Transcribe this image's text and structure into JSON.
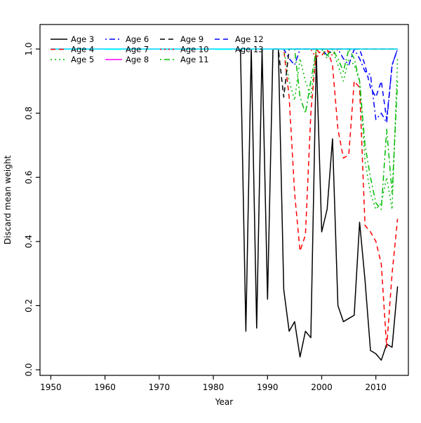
{
  "figure": {
    "background": "#ffffff"
  },
  "chart_data": {
    "type": "line",
    "title": "",
    "xlabel": "Year",
    "ylabel": "Discard mean weight",
    "xlim": [
      1948,
      2016
    ],
    "ylim": [
      0.0,
      1.0
    ],
    "xticks": [
      1950,
      1960,
      1970,
      1980,
      1990,
      2000,
      2010
    ],
    "yticks": [
      0.0,
      0.2,
      0.4,
      0.6,
      0.8,
      1.0
    ],
    "ytick_labels": [
      "0.0",
      "0.2",
      "0.4",
      "0.6",
      "0.8",
      "1.0"
    ],
    "grid": false,
    "legend": {
      "position": "top-left-inside",
      "columns": 4,
      "rows": 3,
      "order": "column-major",
      "labels": [
        "Age 3",
        "Age 4",
        "Age 5",
        "Age 6",
        "Age 7",
        "Age 8",
        "Age 9",
        "Age 10",
        "Age 11",
        "Age 12",
        "Age 13"
      ]
    },
    "series": [
      {
        "name": "Age 3",
        "color": "#000000",
        "dash": "solid",
        "x": [
          1985,
          1986,
          1987,
          1988,
          1989,
          1990,
          1991,
          1992,
          1993,
          1994,
          1995,
          1996,
          1997,
          1998,
          1999,
          2000,
          2001,
          2002,
          2003,
          2004,
          2005,
          2006,
          2007,
          2008,
          2009,
          2010,
          2011,
          2012,
          2013,
          2014
        ],
        "y": [
          1.0,
          0.12,
          1.0,
          0.13,
          1.0,
          0.22,
          1.0,
          1.0,
          0.25,
          0.12,
          0.15,
          0.04,
          0.12,
          0.1,
          0.98,
          0.43,
          0.5,
          0.72,
          0.2,
          0.15,
          0.16,
          0.17,
          0.46,
          0.28,
          0.06,
          0.05,
          0.03,
          0.08,
          0.07,
          0.26
        ]
      },
      {
        "name": "Age 4",
        "color": "#FF0000",
        "dash": "dashed",
        "x": [
          1992,
          1993,
          1994,
          1995,
          1996,
          1997,
          1998,
          1999,
          2000,
          2001,
          2002,
          2003,
          2004,
          2005,
          2006,
          2007,
          2008,
          2009,
          2010,
          2011,
          2012,
          2013,
          2014
        ],
        "y": [
          1.0,
          1.0,
          0.85,
          0.55,
          0.37,
          0.42,
          0.8,
          1.0,
          0.98,
          1.0,
          0.95,
          0.75,
          0.66,
          0.67,
          0.9,
          0.88,
          0.45,
          0.43,
          0.4,
          0.33,
          0.07,
          0.3,
          0.47
        ]
      },
      {
        "name": "Age 5",
        "color": "#00BB00",
        "dash": "dotted",
        "x": [
          1993,
          1994,
          1995,
          1996,
          1997,
          1998,
          1999,
          2000,
          2001,
          2002,
          2003,
          2004,
          2005,
          2006,
          2007,
          2008,
          2009,
          2010,
          2011,
          2012,
          2013,
          2014
        ],
        "y": [
          1.0,
          0.9,
          0.84,
          0.97,
          0.9,
          0.85,
          1.0,
          1.0,
          0.97,
          1.0,
          0.95,
          0.9,
          0.97,
          0.95,
          0.9,
          0.65,
          0.55,
          0.5,
          0.52,
          0.6,
          0.5,
          0.97
        ]
      },
      {
        "name": "Age 6",
        "color": "#0000FF",
        "dash": "dashdot",
        "x": [
          1992,
          1993,
          1994,
          1995,
          1996,
          1997,
          1998,
          1999,
          2000,
          2001,
          2002,
          2003,
          2004,
          2005,
          2006,
          2007,
          2008,
          2009,
          2010,
          2011,
          2012,
          2013,
          2014
        ],
        "y": [
          1.0,
          1.0,
          0.97,
          0.95,
          1.0,
          1.0,
          1.0,
          1.0,
          1.0,
          0.98,
          1.0,
          1.0,
          0.97,
          0.95,
          1.0,
          0.97,
          0.93,
          0.92,
          0.78,
          0.8,
          0.77,
          0.95,
          1.0
        ]
      },
      {
        "name": "Age 7",
        "color": "#00FFFF",
        "dash": "solid",
        "x": [
          1950,
          2014
        ],
        "y": [
          1.0,
          1.0
        ]
      },
      {
        "name": "Age 8",
        "color": "#FF00FF",
        "dash": "solid",
        "x": [
          1950,
          2014
        ],
        "y": [
          1.0,
          1.0
        ]
      },
      {
        "name": "Age 9",
        "color": "#000000",
        "dash": "dashed",
        "x": [
          1991,
          1992,
          1993,
          1994,
          1995,
          1996,
          1997,
          1998,
          1999,
          2000,
          2001,
          2002,
          2003,
          2004,
          2005,
          2006,
          2007,
          2008,
          2009,
          2010,
          2011,
          2012,
          2013,
          2014
        ],
        "y": [
          1.0,
          1.0,
          0.85,
          1.0,
          1.0,
          1.0,
          1.0,
          1.0,
          1.0,
          1.0,
          1.0,
          1.0,
          1.0,
          1.0,
          1.0,
          1.0,
          1.0,
          1.0,
          1.0,
          1.0,
          1.0,
          1.0,
          1.0,
          1.0
        ]
      },
      {
        "name": "Age 10",
        "color": "#FF0000",
        "dash": "dotted",
        "x": [
          1995,
          1996,
          1997,
          1998,
          1999,
          2000,
          2001,
          2002,
          2003,
          2004,
          2005,
          2006,
          2007,
          2008,
          2009,
          2010,
          2011,
          2012,
          2013,
          2014
        ],
        "y": [
          1.0,
          1.0,
          1.0,
          1.0,
          0.97,
          1.0,
          1.0,
          0.98,
          1.0,
          1.0,
          1.0,
          1.0,
          1.0,
          1.0,
          1.0,
          1.0,
          1.0,
          1.0,
          1.0,
          1.0
        ]
      },
      {
        "name": "Age 11",
        "color": "#00BB00",
        "dash": "dashdot",
        "x": [
          1995,
          1996,
          1997,
          1998,
          1999,
          2000,
          2001,
          2002,
          2003,
          2004,
          2005,
          2006,
          2007,
          2008,
          2009,
          2010,
          2011,
          2012,
          2013,
          2014
        ],
        "y": [
          1.0,
          0.85,
          0.8,
          0.9,
          1.0,
          1.0,
          0.98,
          1.0,
          0.97,
          0.93,
          1.0,
          0.97,
          0.9,
          0.7,
          0.6,
          0.52,
          0.5,
          0.75,
          0.55,
          0.9
        ]
      },
      {
        "name": "Age 12",
        "color": "#0000FF",
        "dash": "dashed",
        "x": [
          1995,
          1996,
          1997,
          1998,
          1999,
          2000,
          2001,
          2002,
          2003,
          2004,
          2005,
          2006,
          2007,
          2008,
          2009,
          2010,
          2011,
          2012,
          2013,
          2014
        ],
        "y": [
          1.0,
          1.0,
          1.0,
          1.0,
          1.0,
          1.0,
          1.0,
          1.0,
          1.0,
          1.0,
          1.0,
          1.0,
          1.0,
          0.95,
          0.88,
          0.85,
          0.9,
          0.78,
          0.95,
          1.0
        ]
      },
      {
        "name": "Age 13",
        "color": "#00FFFF",
        "dash": "solid",
        "x": [
          1950,
          2014
        ],
        "y": [
          1.0,
          1.0
        ]
      }
    ]
  }
}
